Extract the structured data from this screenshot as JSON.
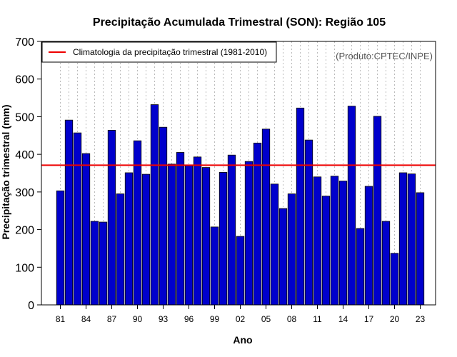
{
  "colors": {
    "bar_fill": "#0000cc",
    "bar_stroke": "#000000",
    "climatology_line": "#ee0000",
    "grid": "#bbbbbb",
    "credit": "#555555"
  },
  "chart_data": {
    "type": "bar",
    "title": "Precipitação Acumulada Trimestral (SON): Região 105",
    "xlabel": "Ano",
    "ylabel": "Precipitação trimestral (mm)",
    "ylim": [
      0,
      700
    ],
    "yticks": [
      0,
      100,
      200,
      300,
      400,
      500,
      600,
      700
    ],
    "categories": [
      "81",
      "82",
      "83",
      "84",
      "85",
      "86",
      "87",
      "88",
      "89",
      "90",
      "91",
      "92",
      "93",
      "94",
      "95",
      "96",
      "97",
      "98",
      "99",
      "00",
      "01",
      "02",
      "03",
      "04",
      "05",
      "06",
      "07",
      "08",
      "09",
      "10",
      "11",
      "12",
      "13",
      "14",
      "15",
      "16",
      "17",
      "18",
      "19",
      "20",
      "21",
      "22",
      "23"
    ],
    "tick_labels": [
      "81",
      "84",
      "87",
      "90",
      "93",
      "96",
      "99",
      "02",
      "05",
      "08",
      "11",
      "14",
      "17",
      "20",
      "23"
    ],
    "values": [
      303,
      491,
      457,
      402,
      222,
      220,
      464,
      295,
      351,
      436,
      347,
      532,
      472,
      374,
      405,
      370,
      393,
      365,
      207,
      352,
      398,
      182,
      381,
      430,
      467,
      321,
      256,
      295,
      523,
      438,
      340,
      289,
      342,
      329,
      528,
      203,
      315,
      501,
      222,
      137,
      351,
      348,
      298
    ],
    "series": [
      {
        "name": "Precipitação trimestral",
        "values_ref": "values"
      }
    ],
    "climatology": {
      "label": "Climatologia da precipitação trimestral (1981-2010)",
      "value": 371
    },
    "legend_position": "top-left",
    "grid": "vertical dotted at each year",
    "credit": "(Produto:CPTEC/INPE)"
  }
}
